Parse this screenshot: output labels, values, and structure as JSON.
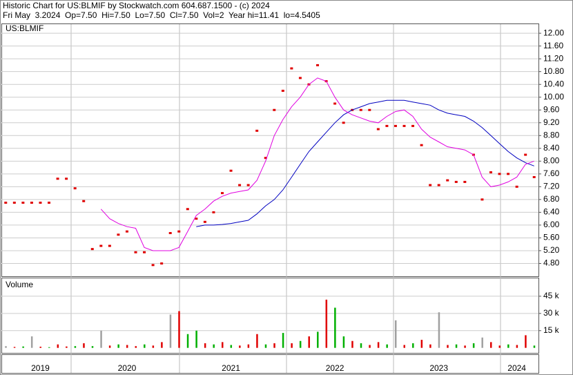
{
  "header": {
    "line1": "Historic Chart for US:BLMIF by Stockwatch.com 604.687.1500 - (c) 2024",
    "line2": "Fri May  3.2024  Op=7.50  Hi=7.50  Lo=7.50  Cl=7.50  Vol=2  Year hi=11.41  lo=4.5405"
  },
  "chart_data": [
    {
      "type": "line",
      "label": "US:BLMIF",
      "ylim": [
        4.4,
        12.24
      ],
      "grid": true,
      "yticks": [
        {
          "value": 4.8,
          "label": "4.80"
        },
        {
          "value": 5.2,
          "label": "5.20"
        },
        {
          "value": 5.6,
          "label": "5.60"
        },
        {
          "value": 6.0,
          "label": "6.00"
        },
        {
          "value": 6.4,
          "label": "6.40"
        },
        {
          "value": 6.8,
          "label": "6.80"
        },
        {
          "value": 7.2,
          "label": "7.20"
        },
        {
          "value": 7.6,
          "label": "7.60"
        },
        {
          "value": 8.0,
          "label": "8.00"
        },
        {
          "value": 8.4,
          "label": "8.40"
        },
        {
          "value": 8.8,
          "label": "8.80"
        },
        {
          "value": 9.2,
          "label": "9.20"
        },
        {
          "value": 9.6,
          "label": "9.60"
        },
        {
          "value": 10.0,
          "label": "10.00"
        },
        {
          "value": 10.4,
          "label": "10.40"
        },
        {
          "value": 10.8,
          "label": "10.80"
        },
        {
          "value": 11.2,
          "label": "11.20"
        },
        {
          "value": 11.6,
          "label": "11.60"
        },
        {
          "value": 12.0,
          "label": "12.00"
        }
      ],
      "series": [
        {
          "color": "#e00000",
          "style": "dots",
          "values": [
            6.7,
            6.7,
            6.7,
            6.7,
            6.7,
            6.7,
            7.45,
            7.45,
            7.15,
            6.75,
            5.25,
            5.35,
            5.35,
            5.7,
            5.8,
            5.15,
            5.15,
            4.75,
            4.8,
            5.75,
            5.8,
            6.5,
            6.2,
            6.1,
            6.4,
            7.0,
            7.7,
            7.25,
            7.25,
            8.95,
            8.1,
            9.6,
            10.2,
            10.9,
            10.6,
            10.4,
            11.0,
            10.5,
            9.8,
            9.2,
            9.6,
            9.6,
            9.6,
            9.0,
            9.1,
            9.1,
            9.1,
            9.1,
            8.5,
            7.25,
            7.25,
            7.4,
            7.35,
            7.35,
            8.2,
            6.8,
            7.65,
            7.6,
            7.6,
            7.2,
            8.2,
            7.5
          ]
        },
        {
          "color": "#0000c0",
          "style": "line",
          "values": [
            null,
            null,
            null,
            null,
            null,
            null,
            null,
            null,
            null,
            null,
            null,
            null,
            null,
            null,
            null,
            null,
            null,
            null,
            null,
            null,
            null,
            null,
            5.95,
            6.0,
            6.0,
            6.02,
            6.05,
            6.1,
            6.15,
            6.35,
            6.6,
            6.8,
            7.1,
            7.5,
            7.9,
            8.3,
            8.6,
            8.9,
            9.2,
            9.45,
            9.6,
            9.7,
            9.8,
            9.85,
            9.9,
            9.9,
            9.9,
            9.85,
            9.8,
            9.75,
            9.6,
            9.5,
            9.45,
            9.4,
            9.25,
            9.05,
            8.8,
            8.55,
            8.3,
            8.1,
            7.95,
            7.85
          ]
        },
        {
          "color": "#e000e0",
          "style": "line",
          "values": [
            null,
            null,
            null,
            null,
            null,
            null,
            null,
            null,
            null,
            null,
            null,
            6.5,
            6.2,
            6.05,
            5.95,
            5.9,
            5.3,
            5.2,
            5.2,
            5.2,
            5.3,
            5.8,
            6.3,
            6.5,
            6.75,
            6.9,
            7.0,
            7.05,
            7.1,
            7.4,
            8.0,
            8.8,
            9.3,
            9.7,
            10.0,
            10.4,
            10.6,
            10.5,
            10.0,
            9.6,
            9.45,
            9.35,
            9.25,
            9.2,
            9.4,
            9.55,
            9.6,
            9.4,
            9.0,
            8.75,
            8.6,
            8.45,
            8.4,
            8.35,
            8.2,
            7.5,
            7.2,
            7.25,
            7.35,
            7.5,
            7.9,
            8.0
          ]
        }
      ]
    },
    {
      "type": "bar",
      "label": "Volume",
      "ylim": [
        -5000,
        60000
      ],
      "grid": true,
      "yticks": [
        {
          "value": 15000,
          "label": "15 k"
        },
        {
          "value": 30000,
          "label": "30 k"
        },
        {
          "value": 45000,
          "label": "45 k"
        }
      ],
      "categories": [
        null,
        null,
        null,
        null,
        "2019",
        null,
        null,
        null,
        null,
        null,
        null,
        null,
        null,
        null,
        "2020",
        null,
        null,
        null,
        null,
        null,
        null,
        null,
        null,
        null,
        null,
        null,
        "2021",
        null,
        null,
        null,
        null,
        null,
        null,
        null,
        null,
        null,
        null,
        null,
        "2022",
        null,
        null,
        null,
        null,
        null,
        null,
        null,
        null,
        null,
        null,
        null,
        "2023",
        null,
        null,
        null,
        null,
        null,
        null,
        null,
        null,
        "2024",
        null,
        null
      ],
      "values": [
        1500,
        800,
        1200,
        10000,
        1000,
        600,
        3000,
        1200,
        1500,
        4000,
        1500,
        15000,
        2000,
        3000,
        2500,
        1500,
        3000,
        2000,
        5000,
        29000,
        32000,
        12000,
        15000,
        4000,
        3000,
        5000,
        2500,
        2000,
        3000,
        12000,
        3000,
        4000,
        13000,
        4000,
        6000,
        10000,
        14000,
        42000,
        35000,
        10000,
        6000,
        4000,
        2500,
        5000,
        3000,
        24000,
        2500,
        4000,
        7000,
        3000,
        31000,
        2500,
        3000,
        2000,
        4000,
        9000,
        5000,
        2000,
        3000,
        2500,
        11000,
        2000
      ],
      "colors": [
        "#a0a0a0",
        "#e00000",
        "#00b000",
        "#a0a0a0",
        "#e00000",
        "#00b000",
        "#e00000",
        "#e00000",
        "#00b000",
        "#e00000",
        "#00b000",
        "#a0a0a0",
        "#e00000",
        "#00b000",
        "#e00000",
        "#e00000",
        "#00b000",
        "#e00000",
        "#e00000",
        "#a0a0a0",
        "#e00000",
        "#00b000",
        "#00b000",
        "#e00000",
        "#00b000",
        "#e00000",
        "#00b000",
        "#e00000",
        "#e00000",
        "#e00000",
        "#00b000",
        "#e00000",
        "#00b000",
        "#e00000",
        "#00b000",
        "#e00000",
        "#00b000",
        "#e00000",
        "#00b000",
        "#00b000",
        "#e00000",
        "#00b000",
        "#e00000",
        "#e00000",
        "#00b000",
        "#a0a0a0",
        "#e00000",
        "#00b000",
        "#e00000",
        "#e00000",
        "#a0a0a0",
        "#e00000",
        "#00b000",
        "#e00000",
        "#00b000",
        "#a0a0a0",
        "#e00000",
        "#e00000",
        "#00b000",
        "#e00000",
        "#e00000",
        "#00b000"
      ]
    }
  ]
}
